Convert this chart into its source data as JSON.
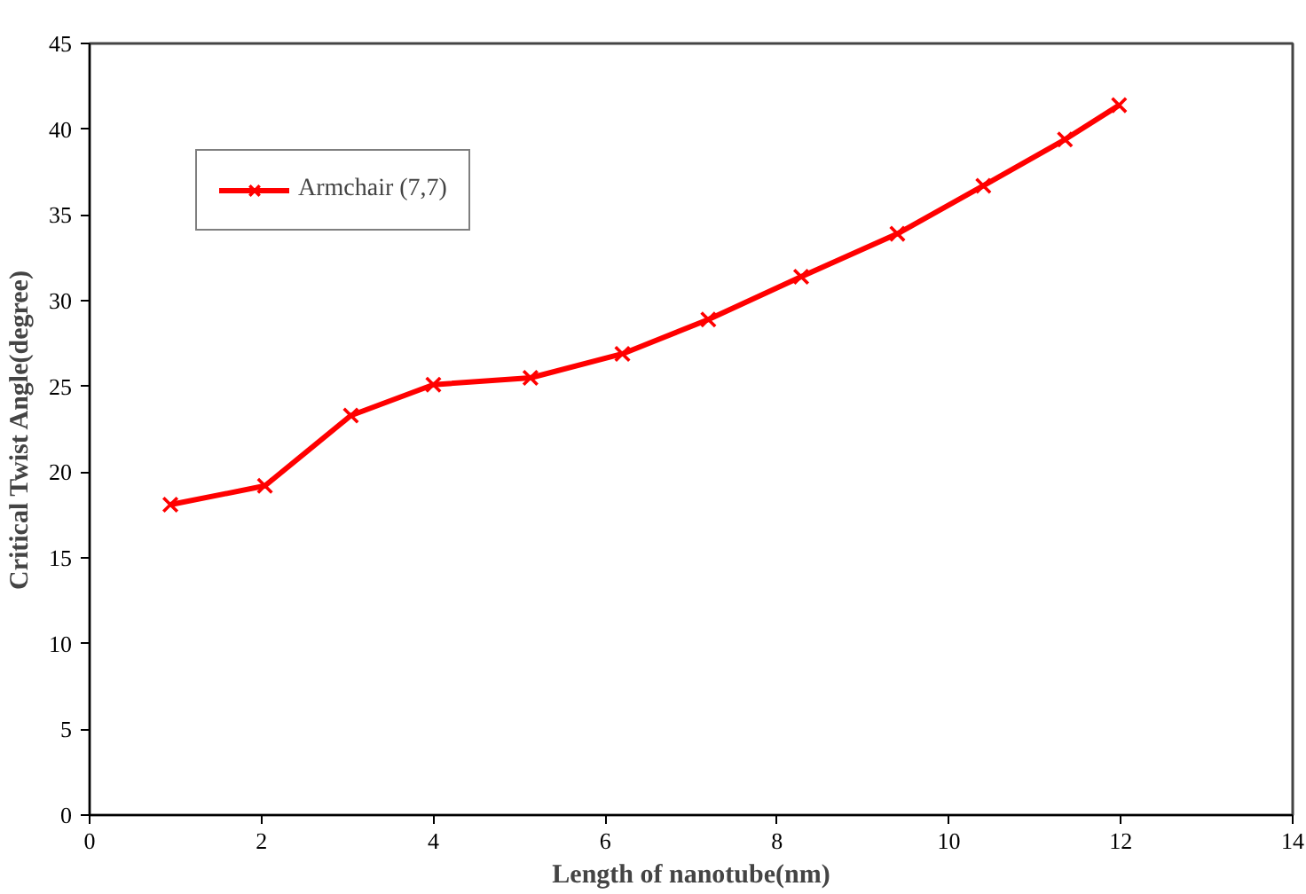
{
  "chart_data": {
    "type": "line",
    "xlabel": "Length of nanotube(nm)",
    "ylabel": "Critical Twist Angle(degree)",
    "xlim": [
      0,
      14
    ],
    "xticks": [
      0,
      2,
      4,
      6,
      8,
      10,
      12,
      14
    ],
    "ylim": [
      0,
      45
    ],
    "yticks": [
      0,
      5,
      10,
      15,
      20,
      25,
      30,
      35,
      40,
      45
    ],
    "grid": false,
    "legend": "top left",
    "marker": "cross",
    "line_style": "solid",
    "series": [
      {
        "name": "Armchair (7,7)",
        "color": "#ff0000",
        "x": [
          0.94,
          2.04,
          3.04,
          4.0,
          5.13,
          6.2,
          7.2,
          8.28,
          9.4,
          10.4,
          11.35,
          11.98
        ],
        "values": [
          18.1,
          19.2,
          23.3,
          25.1,
          25.5,
          26.9,
          28.9,
          31.4,
          33.9,
          36.7,
          39.4,
          41.4
        ]
      }
    ]
  }
}
